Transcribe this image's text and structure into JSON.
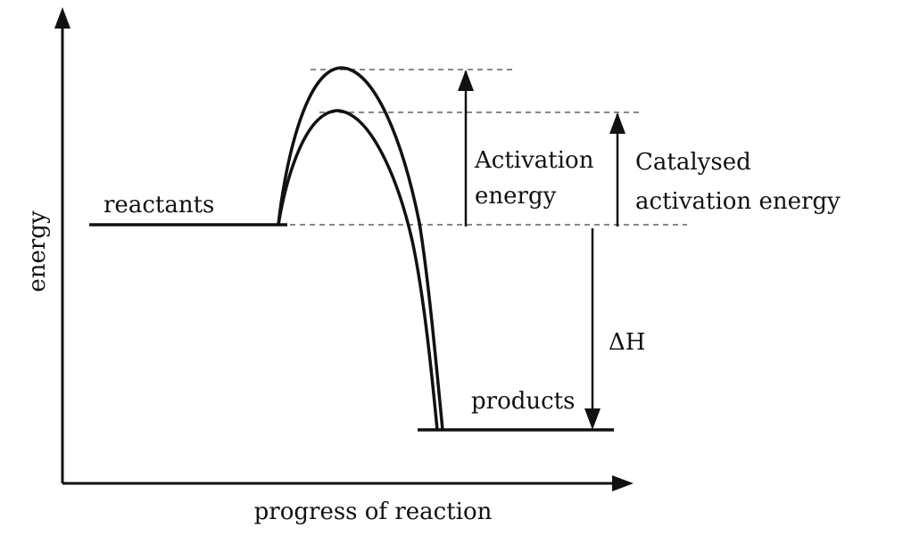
{
  "diagram": {
    "axes": {
      "y_label": "energy",
      "x_label": "progress of reaction"
    },
    "levels": {
      "reactants": "reactants",
      "products": "products"
    },
    "annotations": {
      "activation_line1": "Activation",
      "activation_line2": "energy",
      "catalysed_line1": "Catalysed",
      "catalysed_line2": "activation energy",
      "delta_h": "ΔH"
    },
    "colors": {
      "stroke": "#111111",
      "dashed": "#888888"
    }
  }
}
